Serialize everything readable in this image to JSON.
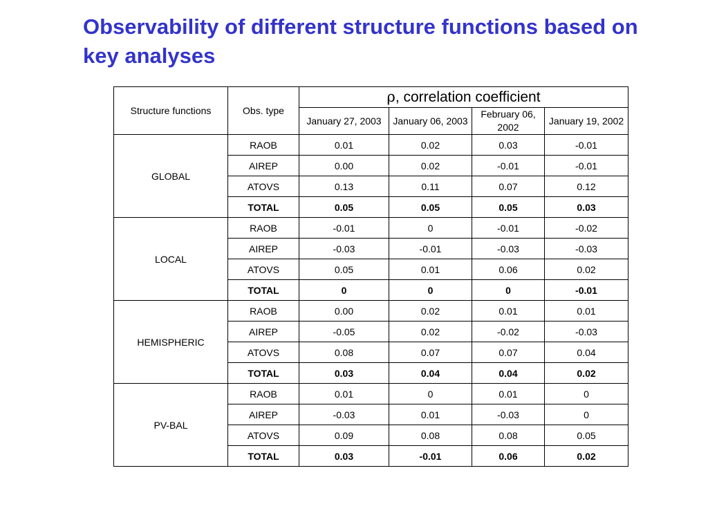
{
  "slide": {
    "title": "Observability of different structure functions based on key analyses"
  },
  "table": {
    "header": {
      "structure_functions": "Structure functions",
      "obs_type": "Obs. type",
      "rho_symbol": "ρ",
      "correlation_label": ", correlation coefficient",
      "dates": [
        "January 27, 2003",
        "January 06, 2003",
        "February 06, 2002",
        "January 19, 2002"
      ]
    },
    "groups": [
      {
        "name": "GLOBAL",
        "rows": [
          {
            "obs": "RAOB",
            "values": [
              "0.01",
              "0.02",
              "0.03",
              "-0.01"
            ]
          },
          {
            "obs": "AIREP",
            "values": [
              "0.00",
              "0.02",
              "-0.01",
              "-0.01"
            ]
          },
          {
            "obs": "ATOVS",
            "values": [
              "0.13",
              "0.11",
              "0.07",
              "0.12"
            ]
          },
          {
            "obs": "TOTAL",
            "values": [
              "0.05",
              "0.05",
              "0.05",
              "0.03"
            ]
          }
        ]
      },
      {
        "name": "LOCAL",
        "rows": [
          {
            "obs": "RAOB",
            "values": [
              "-0.01",
              "0",
              "-0.01",
              "-0.02"
            ]
          },
          {
            "obs": "AIREP",
            "values": [
              "-0.03",
              "-0.01",
              "-0.03",
              "-0.03"
            ]
          },
          {
            "obs": "ATOVS",
            "values": [
              "0.05",
              "0.01",
              "0.06",
              "0.02"
            ]
          },
          {
            "obs": "TOTAL",
            "values": [
              "0",
              "0",
              "0",
              "-0.01"
            ]
          }
        ]
      },
      {
        "name": "HEMISPHERIC",
        "rows": [
          {
            "obs": "RAOB",
            "values": [
              "0.00",
              "0.02",
              "0.01",
              "0.01"
            ]
          },
          {
            "obs": "AIREP",
            "values": [
              "-0.05",
              "0.02",
              "-0.02",
              "-0.03"
            ]
          },
          {
            "obs": "ATOVS",
            "values": [
              "0.08",
              "0.07",
              "0.07",
              "0.04"
            ]
          },
          {
            "obs": "TOTAL",
            "values": [
              "0.03",
              "0.04",
              "0.04",
              "0.02"
            ]
          }
        ]
      },
      {
        "name": "PV-BAL",
        "rows": [
          {
            "obs": "RAOB",
            "values": [
              "0.01",
              "0",
              "0.01",
              "0"
            ]
          },
          {
            "obs": "AIREP",
            "values": [
              "-0.03",
              "0.01",
              "-0.03",
              "0"
            ]
          },
          {
            "obs": "ATOVS",
            "values": [
              "0.09",
              "0.08",
              "0.08",
              "0.05"
            ]
          },
          {
            "obs": "TOTAL",
            "values": [
              "0.03",
              "-0.01",
              "0.06",
              "0.02"
            ]
          }
        ]
      }
    ]
  }
}
